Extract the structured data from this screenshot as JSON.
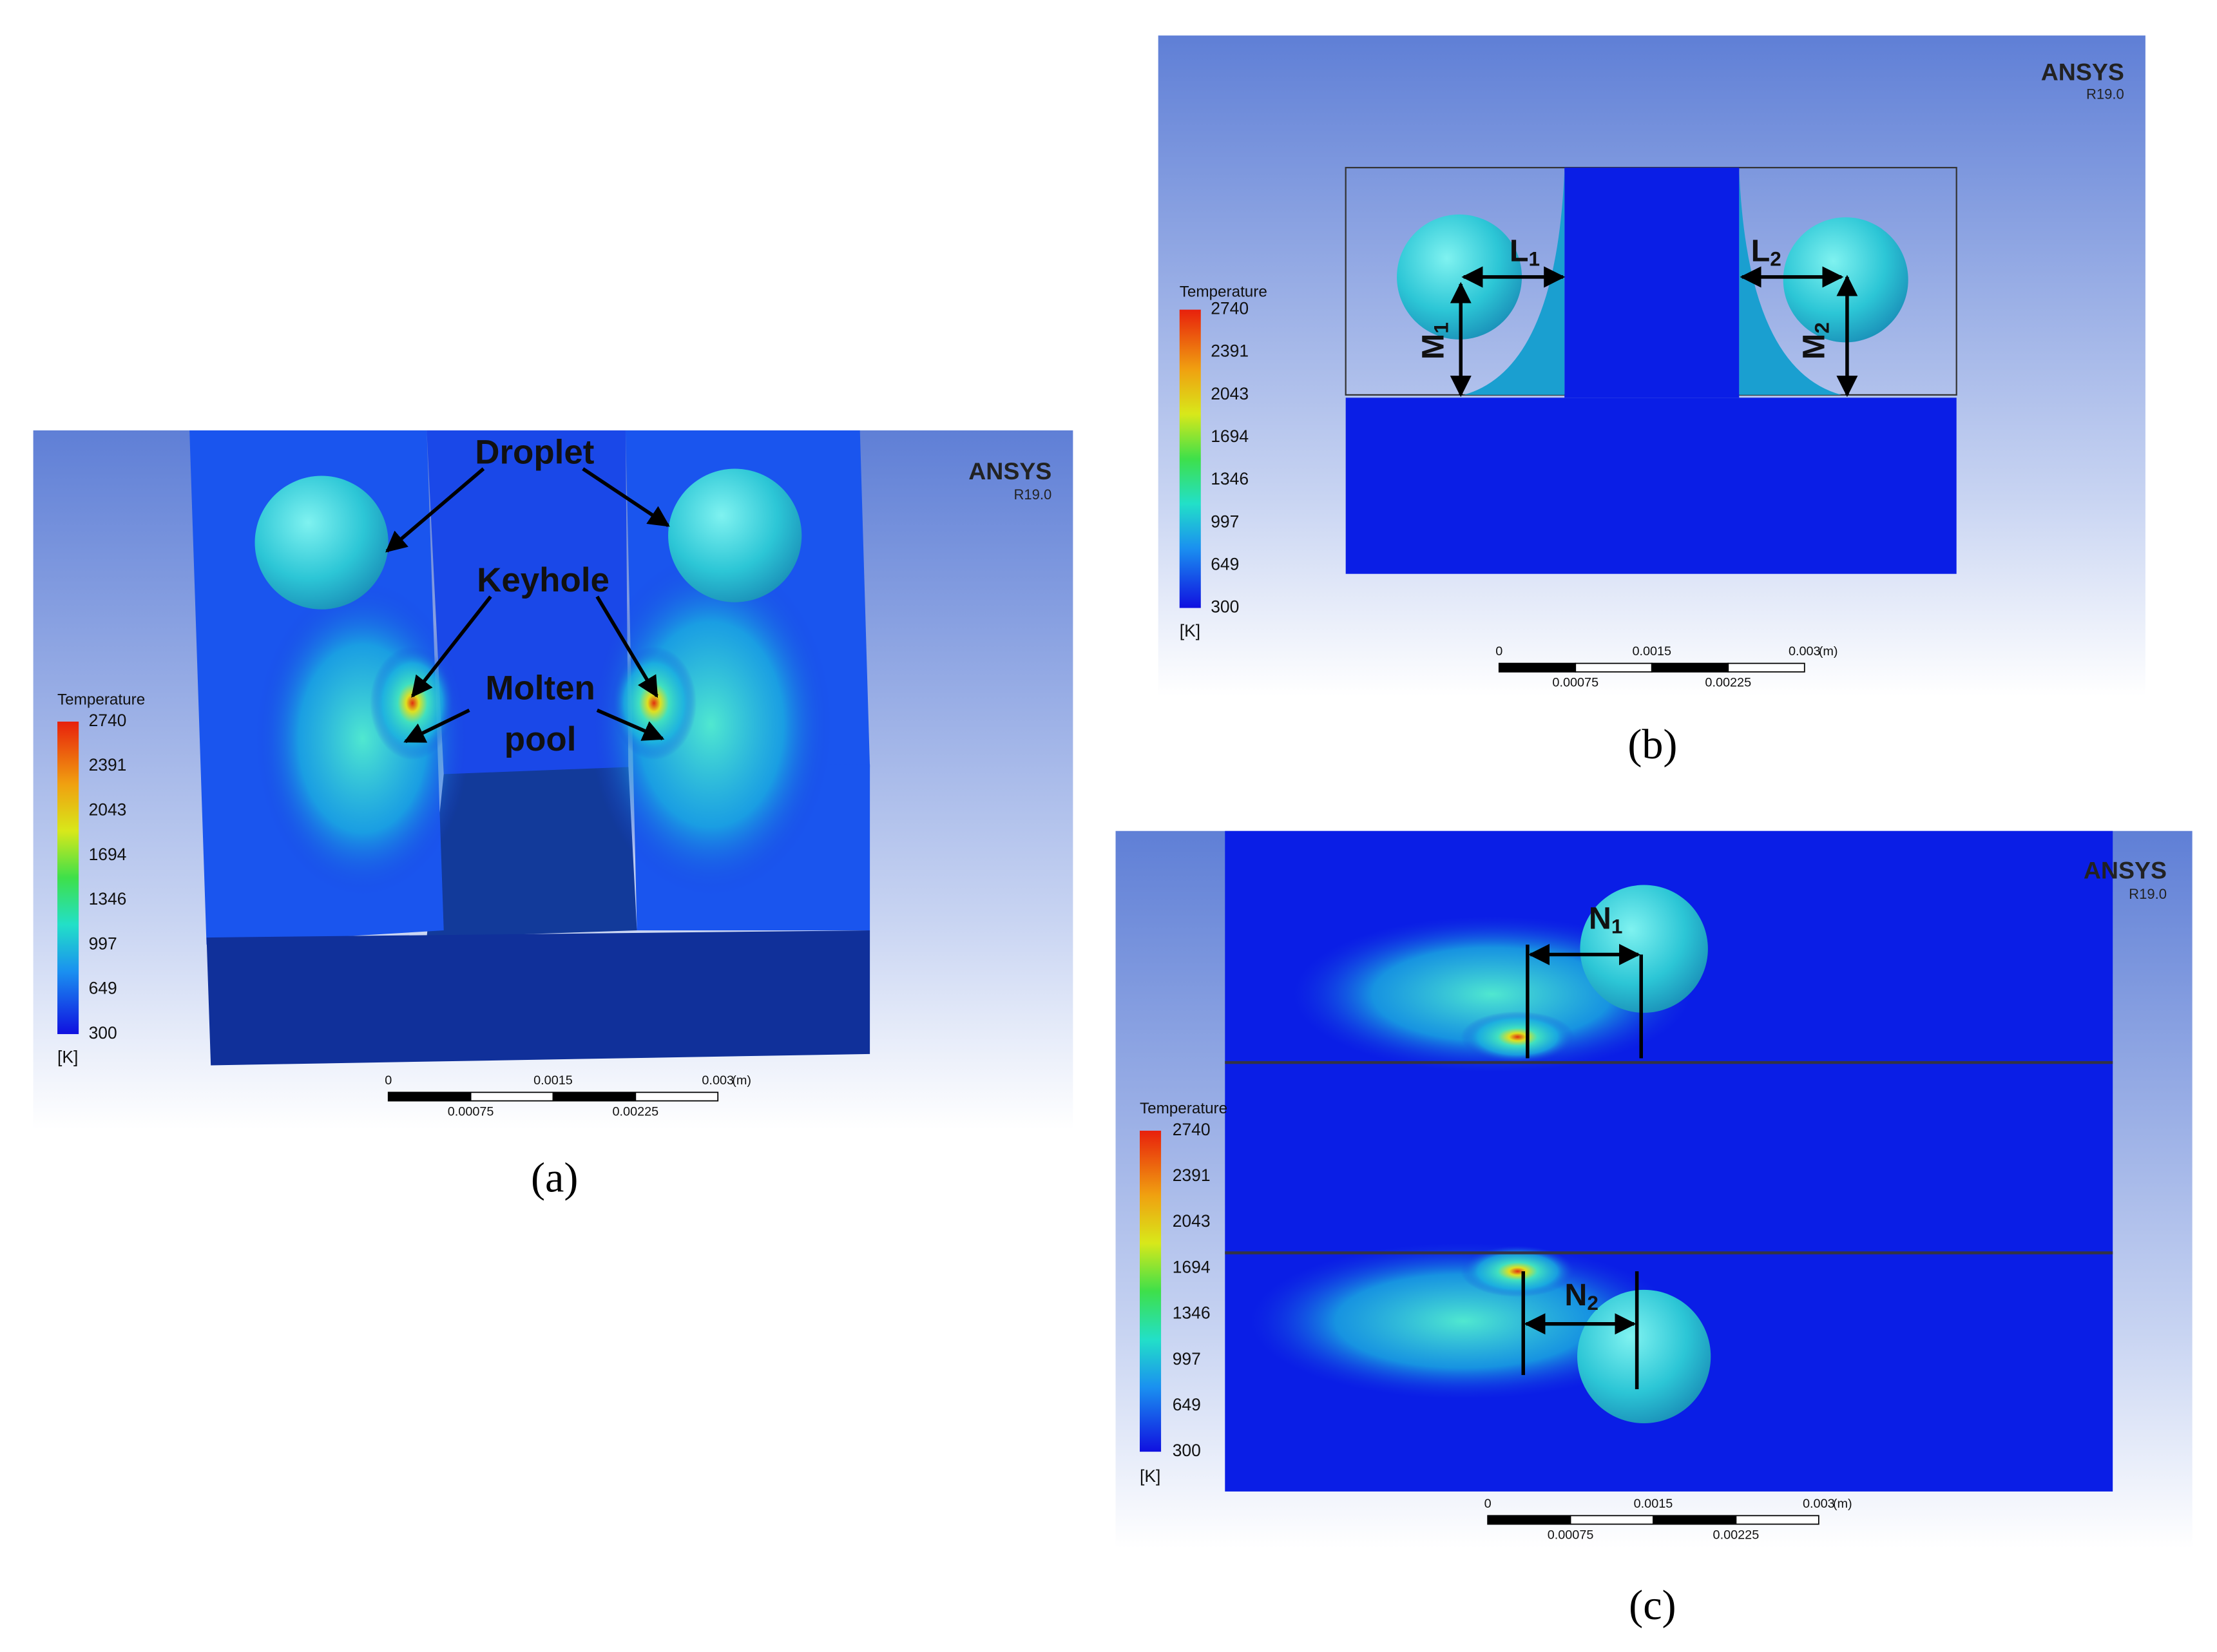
{
  "panels": [
    {
      "label": "(a)",
      "legend": {
        "title": "Temperature",
        "ticks": [
          "2740",
          "2391",
          "2043",
          "1694",
          "1346",
          "997",
          "649",
          "300"
        ],
        "unit": "[K]"
      },
      "brand": "ANSYS",
      "version": "R19.0",
      "scale": {
        "top": [
          "0",
          "0.0015",
          "0.003"
        ],
        "unit": "(m)",
        "bottom": [
          "0.00075",
          "0.00225"
        ]
      },
      "annotations": [
        {
          "text": "Droplet"
        },
        {
          "text": "Keyhole"
        },
        {
          "text": "Molten"
        },
        {
          "text": "pool"
        }
      ]
    },
    {
      "label": "(b)",
      "legend": {
        "title": "Temperature",
        "ticks": [
          "2740",
          "2391",
          "2043",
          "1694",
          "1346",
          "997",
          "649",
          "300"
        ],
        "unit": "[K]"
      },
      "brand": "ANSYS",
      "version": "R19.0",
      "scale": {
        "top": [
          "0",
          "0.0015",
          "0.003"
        ],
        "unit": "(m)",
        "bottom": [
          "0.00075",
          "0.00225"
        ]
      },
      "annotations": [
        {
          "text": "L",
          "sub": "1"
        },
        {
          "text": "L",
          "sub": "2"
        },
        {
          "text": "M",
          "sub": "1"
        },
        {
          "text": "M",
          "sub": "2"
        }
      ]
    },
    {
      "label": "(c)",
      "legend": {
        "title": "Temperature",
        "ticks": [
          "2740",
          "2391",
          "2043",
          "1694",
          "1346",
          "997",
          "649",
          "300"
        ],
        "unit": "[K]"
      },
      "brand": "ANSYS",
      "version": "R19.0",
      "scale": {
        "top": [
          "0",
          "0.0015",
          "0.003"
        ],
        "unit": "(m)",
        "bottom": [
          "0.00075",
          "0.00225"
        ]
      },
      "annotations": [
        {
          "text": "N",
          "sub": "1"
        },
        {
          "text": "N",
          "sub": "2"
        }
      ]
    }
  ]
}
